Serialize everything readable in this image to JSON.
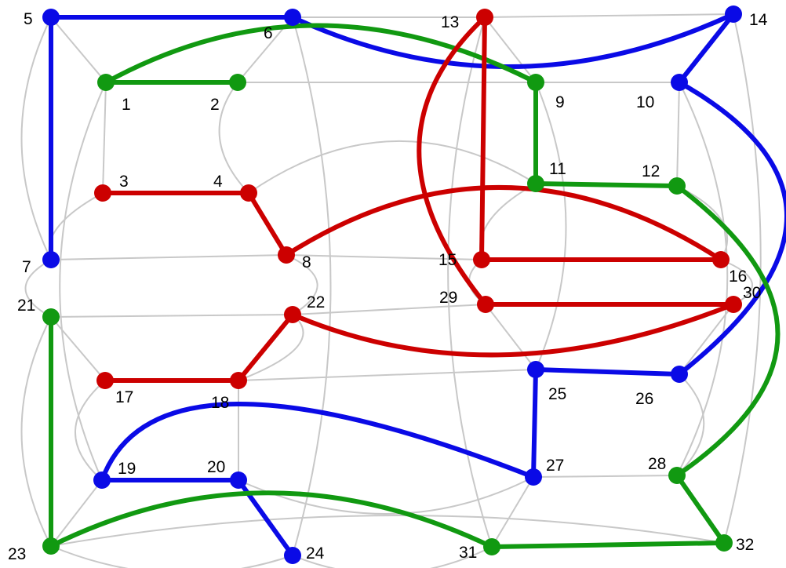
{
  "graph": {
    "colors": {
      "background_edge": "#c8c8c8",
      "blue": "#0a0ae6",
      "red": "#cc0000",
      "green": "#119911"
    },
    "nodes": [
      {
        "id": "1",
        "label": "1",
        "color": "green"
      },
      {
        "id": "2",
        "label": "2",
        "color": "green"
      },
      {
        "id": "3",
        "label": "3",
        "color": "red"
      },
      {
        "id": "4",
        "label": "4",
        "color": "red"
      },
      {
        "id": "5",
        "label": "5",
        "color": "blue"
      },
      {
        "id": "6",
        "label": "6",
        "color": "blue"
      },
      {
        "id": "7",
        "label": "7",
        "color": "blue"
      },
      {
        "id": "8",
        "label": "8",
        "color": "red"
      },
      {
        "id": "9",
        "label": "9",
        "color": "green"
      },
      {
        "id": "10",
        "label": "10",
        "color": "blue"
      },
      {
        "id": "11",
        "label": "11",
        "color": "green"
      },
      {
        "id": "12",
        "label": "12",
        "color": "green"
      },
      {
        "id": "13",
        "label": "13",
        "color": "red"
      },
      {
        "id": "14",
        "label": "14",
        "color": "blue"
      },
      {
        "id": "15",
        "label": "15",
        "color": "red"
      },
      {
        "id": "16",
        "label": "16",
        "color": "red"
      },
      {
        "id": "17",
        "label": "17",
        "color": "red"
      },
      {
        "id": "18",
        "label": "18",
        "color": "red"
      },
      {
        "id": "19",
        "label": "19",
        "color": "blue"
      },
      {
        "id": "20",
        "label": "20",
        "color": "blue"
      },
      {
        "id": "21",
        "label": "21",
        "color": "green"
      },
      {
        "id": "22",
        "label": "22",
        "color": "red"
      },
      {
        "id": "23",
        "label": "23",
        "color": "green"
      },
      {
        "id": "24",
        "label": "24",
        "color": "blue"
      },
      {
        "id": "25",
        "label": "25",
        "color": "blue"
      },
      {
        "id": "26",
        "label": "26",
        "color": "blue"
      },
      {
        "id": "27",
        "label": "27",
        "color": "blue"
      },
      {
        "id": "28",
        "label": "28",
        "color": "green"
      },
      {
        "id": "29",
        "label": "29",
        "color": "red"
      },
      {
        "id": "30",
        "label": "30",
        "color": "red"
      },
      {
        "id": "31",
        "label": "31",
        "color": "green"
      },
      {
        "id": "32",
        "label": "32",
        "color": "green"
      }
    ],
    "colored_edges": [
      {
        "from": "5",
        "to": "6",
        "color": "blue"
      },
      {
        "from": "5",
        "to": "7",
        "color": "blue"
      },
      {
        "from": "6",
        "to": "14",
        "color": "blue"
      },
      {
        "from": "14",
        "to": "10",
        "color": "blue"
      },
      {
        "from": "10",
        "to": "26",
        "color": "blue"
      },
      {
        "from": "26",
        "to": "25",
        "color": "blue"
      },
      {
        "from": "25",
        "to": "27",
        "color": "blue"
      },
      {
        "from": "27",
        "to": "19",
        "color": "blue"
      },
      {
        "from": "19",
        "to": "20",
        "color": "blue"
      },
      {
        "from": "20",
        "to": "24",
        "color": "blue"
      },
      {
        "from": "1",
        "to": "2",
        "color": "green"
      },
      {
        "from": "1",
        "to": "9",
        "color": "green"
      },
      {
        "from": "9",
        "to": "11",
        "color": "green"
      },
      {
        "from": "11",
        "to": "12",
        "color": "green"
      },
      {
        "from": "12",
        "to": "28",
        "color": "green"
      },
      {
        "from": "28",
        "to": "32",
        "color": "green"
      },
      {
        "from": "32",
        "to": "31",
        "color": "green"
      },
      {
        "from": "31",
        "to": "23",
        "color": "green"
      },
      {
        "from": "23",
        "to": "21",
        "color": "green"
      },
      {
        "from": "3",
        "to": "4",
        "color": "red"
      },
      {
        "from": "4",
        "to": "8",
        "color": "red"
      },
      {
        "from": "8",
        "to": "16",
        "color": "red"
      },
      {
        "from": "16",
        "to": "15",
        "color": "red"
      },
      {
        "from": "15",
        "to": "13",
        "color": "red"
      },
      {
        "from": "13",
        "to": "29",
        "color": "red"
      },
      {
        "from": "29",
        "to": "30",
        "color": "red"
      },
      {
        "from": "30",
        "to": "22",
        "color": "red"
      },
      {
        "from": "22",
        "to": "18",
        "color": "red"
      },
      {
        "from": "18",
        "to": "17",
        "color": "red"
      }
    ],
    "background_edges": [
      [
        "5",
        "6"
      ],
      [
        "6",
        "13"
      ],
      [
        "13",
        "14"
      ],
      [
        "5",
        "7"
      ],
      [
        "14",
        "32"
      ],
      [
        "23",
        "32"
      ],
      [
        "7",
        "8"
      ],
      [
        "8",
        "15"
      ],
      [
        "15",
        "16"
      ],
      [
        "1",
        "2"
      ],
      [
        "2",
        "9"
      ],
      [
        "9",
        "10"
      ],
      [
        "10",
        "12"
      ],
      [
        "11",
        "12"
      ],
      [
        "1",
        "3"
      ],
      [
        "3",
        "4"
      ],
      [
        "2",
        "4"
      ],
      [
        "4",
        "11"
      ],
      [
        "5",
        "1"
      ],
      [
        "6",
        "2"
      ],
      [
        "13",
        "9"
      ],
      [
        "14",
        "10"
      ],
      [
        "3",
        "7"
      ],
      [
        "4",
        "8"
      ],
      [
        "11",
        "15"
      ],
      [
        "12",
        "16"
      ],
      [
        "21",
        "22"
      ],
      [
        "22",
        "29"
      ],
      [
        "29",
        "30"
      ],
      [
        "17",
        "18"
      ],
      [
        "18",
        "25"
      ],
      [
        "25",
        "26"
      ],
      [
        "19",
        "20"
      ],
      [
        "20",
        "27"
      ],
      [
        "27",
        "28"
      ],
      [
        "26",
        "28"
      ],
      [
        "17",
        "19"
      ],
      [
        "18",
        "20"
      ],
      [
        "21",
        "17"
      ],
      [
        "22",
        "18"
      ],
      [
        "29",
        "25"
      ],
      [
        "30",
        "26"
      ],
      [
        "23",
        "19"
      ],
      [
        "24",
        "20"
      ],
      [
        "31",
        "27"
      ],
      [
        "32",
        "28"
      ],
      [
        "21",
        "23"
      ],
      [
        "23",
        "24"
      ],
      [
        "24",
        "31"
      ],
      [
        "6",
        "24"
      ],
      [
        "13",
        "31"
      ],
      [
        "7",
        "21"
      ],
      [
        "16",
        "30"
      ],
      [
        "10",
        "28"
      ],
      [
        "1",
        "19"
      ],
      [
        "8",
        "22"
      ],
      [
        "9",
        "25"
      ],
      [
        "15",
        "29"
      ]
    ]
  }
}
